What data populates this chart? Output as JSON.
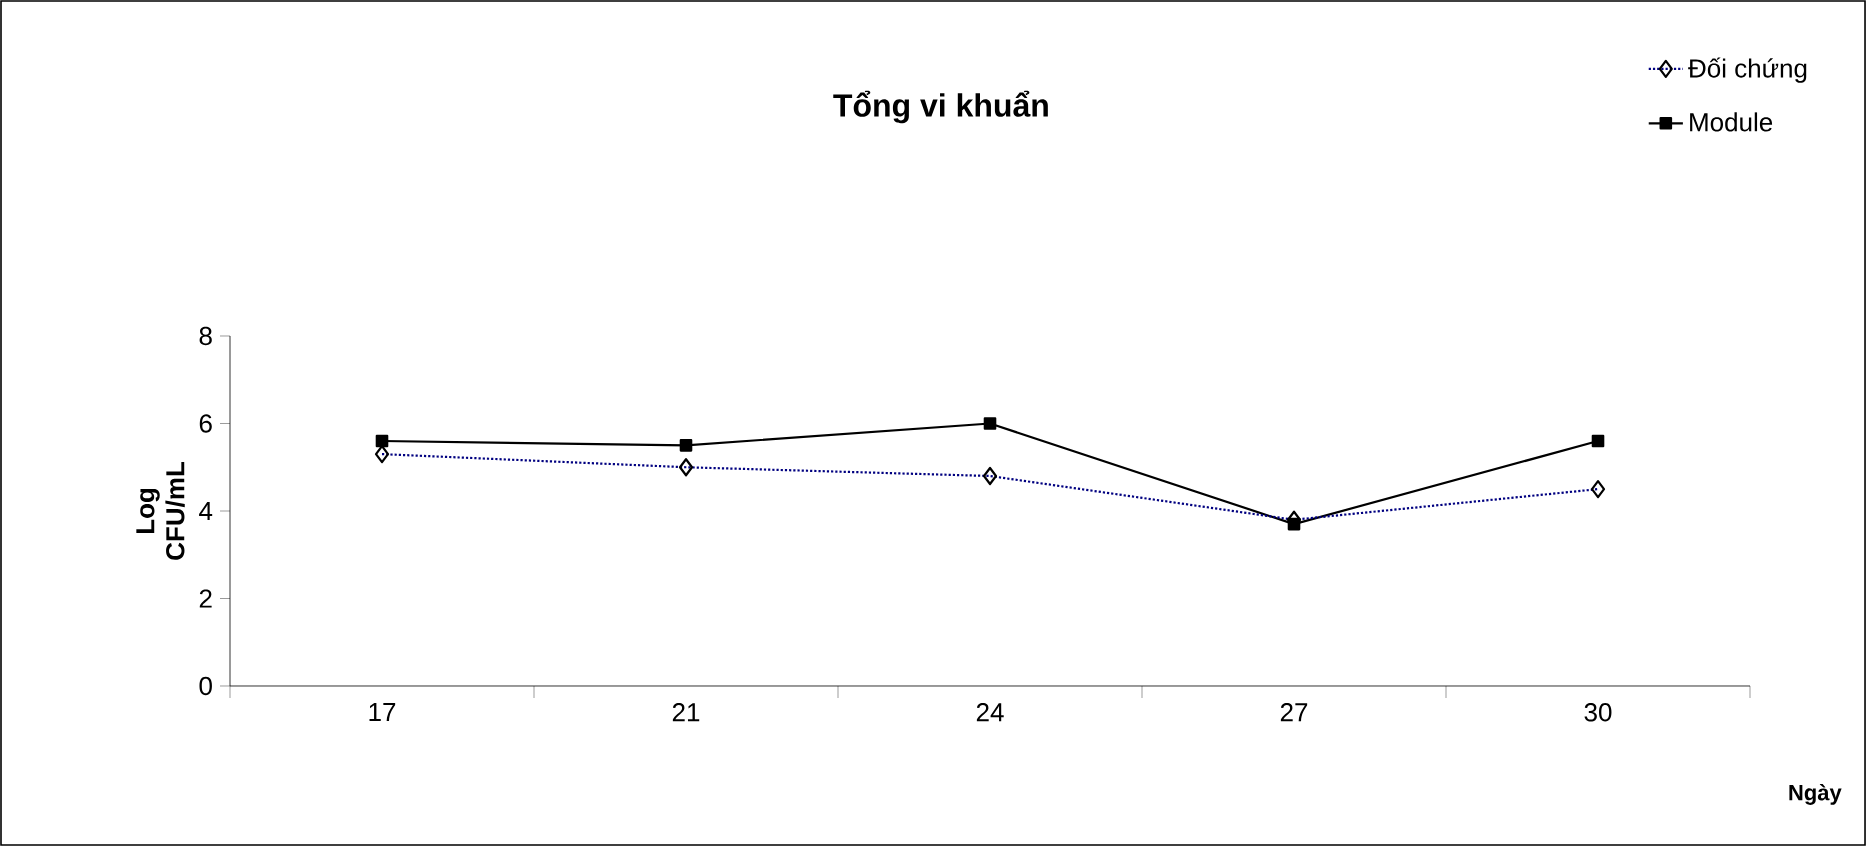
{
  "chart_data": {
    "type": "line",
    "title": "Tổng vi khuẩn",
    "xlabel": "Ngày",
    "ylabel": "Log CFU/mL",
    "categories": [
      "17",
      "21",
      "24",
      "27",
      "30"
    ],
    "series": [
      {
        "name": "Đối chứng",
        "color": "#000080",
        "marker": "diamond",
        "line_style": "dotted",
        "values": [
          5.3,
          5.0,
          4.8,
          3.8,
          4.5
        ]
      },
      {
        "name": "Module",
        "color": "#000000",
        "marker": "square",
        "line_style": "solid",
        "values": [
          5.6,
          5.5,
          6.0,
          3.7,
          5.6
        ]
      }
    ],
    "ylim": [
      0,
      8
    ],
    "yticks": [
      0,
      2,
      4,
      6,
      8
    ],
    "grid": false,
    "legend": "top right"
  }
}
